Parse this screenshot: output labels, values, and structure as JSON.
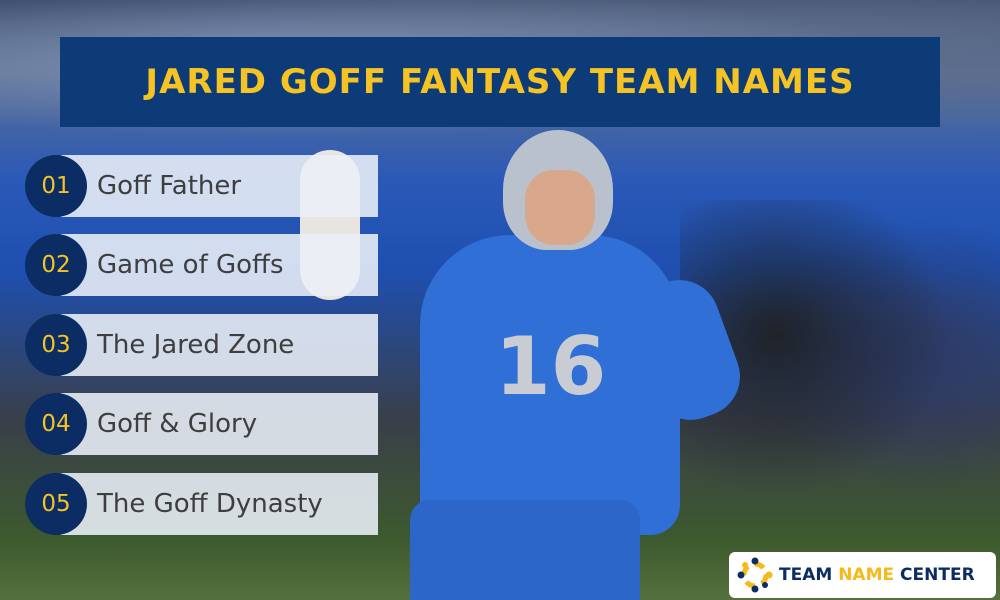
{
  "title": "JARED GOFF FANTASY TEAM NAMES",
  "items": [
    {
      "num": "01",
      "label": "Goff Father"
    },
    {
      "num": "02",
      "label": "Game of Goffs"
    },
    {
      "num": "03",
      "label": "The Jared Zone"
    },
    {
      "num": "04",
      "label": "Goff & Glory"
    },
    {
      "num": "05",
      "label": "The Goff Dynasty"
    }
  ],
  "jersey_number": "16",
  "logo": {
    "part1": "TEAM ",
    "part2": "NAME",
    "part3": " CENTER",
    "icon": "people-circle-icon"
  },
  "colors": {
    "navy": "#0c3b78",
    "gold": "#f5c324"
  }
}
